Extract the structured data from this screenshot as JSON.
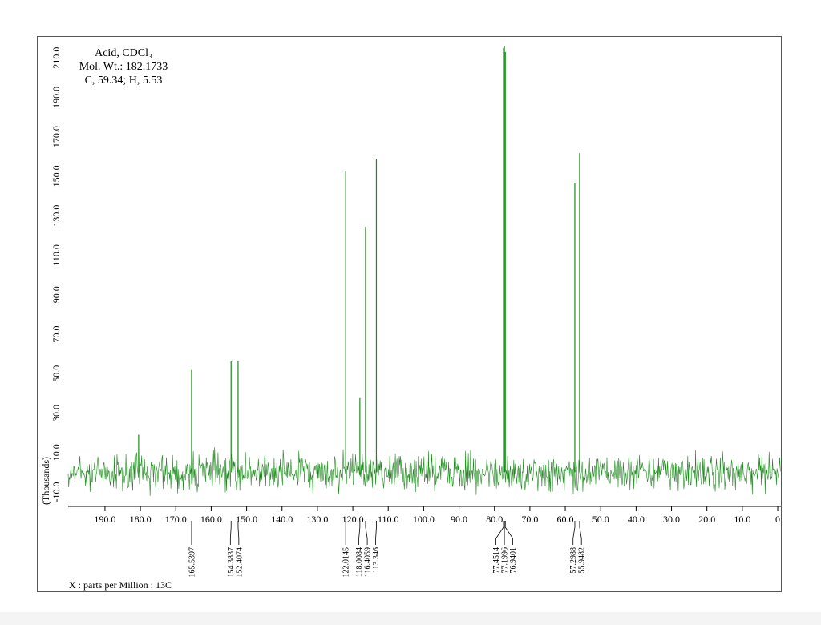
{
  "chart_data": {
    "type": "spectrum",
    "annotations": [
      "Acid, CDCl₃",
      "Mol. Wt.: 182.1733",
      "C, 59.34; H, 5.53"
    ],
    "x_label": "X : parts per Million : 13C",
    "y_label": "(Thousands)",
    "color": "#1b8a1b",
    "xlim": [
      200.4,
      -0.9
    ],
    "ylim": [
      -17.3,
      221
    ],
    "xticks": [
      {
        "value": 190,
        "label": "190.0"
      },
      {
        "value": 180,
        "label": "180.0"
      },
      {
        "value": 170,
        "label": "170.0"
      },
      {
        "value": 160,
        "label": "160.0"
      },
      {
        "value": 150,
        "label": "150.0"
      },
      {
        "value": 140,
        "label": "140.0"
      },
      {
        "value": 130,
        "label": "130.0"
      },
      {
        "value": 120,
        "label": "120.0"
      },
      {
        "value": 110,
        "label": "110.0"
      },
      {
        "value": 100,
        "label": "100.0"
      },
      {
        "value": 90,
        "label": "90.0"
      },
      {
        "value": 80,
        "label": "80.0"
      },
      {
        "value": 70,
        "label": "70.0"
      },
      {
        "value": 60,
        "label": "60.0"
      },
      {
        "value": 50,
        "label": "50.0"
      },
      {
        "value": 40,
        "label": "40.0"
      },
      {
        "value": 30,
        "label": "30.0"
      },
      {
        "value": 20,
        "label": "20.0"
      },
      {
        "value": 10,
        "label": "10.0"
      },
      0
    ],
    "yticks": [
      {
        "value": -10,
        "label": "-10.0"
      },
      {
        "value": 10,
        "label": "10.0"
      },
      {
        "value": 30,
        "label": "30.0"
      },
      {
        "value": 50,
        "label": "50.0"
      },
      {
        "value": 70,
        "label": "70.0"
      },
      {
        "value": 90,
        "label": "90.0"
      },
      {
        "value": 110,
        "label": "110.0"
      },
      {
        "value": 130,
        "label": "130.0"
      },
      {
        "value": 150,
        "label": "150.0"
      },
      {
        "value": 170,
        "label": "170.0"
      },
      {
        "value": 190,
        "label": "190.0"
      },
      {
        "value": 210,
        "label": "210.0"
      }
    ],
    "x": [
      180.5,
      165.5397,
      154.3837,
      152.4074,
      122.0145,
      118.0084,
      116.4059,
      113.346,
      77.4514,
      77.1996,
      76.9401,
      57.2988,
      55.9482
    ],
    "values": [
      19,
      51.8,
      56.2,
      56.2,
      152.8,
      37.6,
      124.4,
      158.9,
      215,
      216,
      213,
      146.7,
      161.7
    ],
    "peak_labels": [
      165.5397,
      154.3837,
      152.4074,
      122.0145,
      118.0084,
      116.4059,
      113.346,
      77.4514,
      77.1996,
      76.9401,
      57.2988,
      55.9482
    ]
  }
}
